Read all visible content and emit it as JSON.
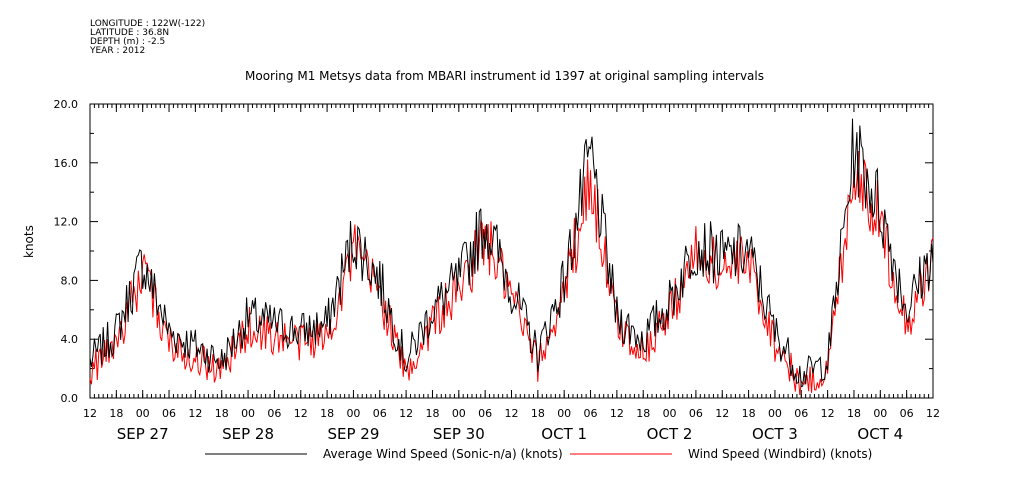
{
  "meta": {
    "longitude": "LONGITUDE : 122W(-122)",
    "latitude": "LATITUDE : 36.8N",
    "depth": "DEPTH (m) : -2.5",
    "year": "YEAR : 2012"
  },
  "chart_data": {
    "type": "line",
    "title": "Mooring M1 Metsys data from MBARI instrument id 1397 at original sampling intervals",
    "ylabel": "knots",
    "xlabel": "",
    "ylim": [
      0,
      20
    ],
    "yticks": [
      "0.0",
      "4.0",
      "8.0",
      "12.0",
      "16.0",
      "20.0"
    ],
    "x_hours_labels": [
      "12",
      "18",
      "00",
      "06",
      "12",
      "18",
      "00",
      "06",
      "12",
      "18",
      "00",
      "06",
      "12",
      "18",
      "00",
      "06",
      "12",
      "18",
      "00",
      "06",
      "12",
      "18",
      "00",
      "06",
      "12",
      "18",
      "00",
      "06",
      "12",
      "18",
      "00",
      "06",
      "12"
    ],
    "x_day_labels": [
      "SEP 27",
      "SEP 28",
      "SEP 29",
      "SEP 30",
      "OCT  1",
      "OCT  2",
      "OCT  3",
      "OCT  4"
    ],
    "time_start": "2012-09-26 12:00",
    "time_end": "2012-10-04 12:00",
    "series": [
      {
        "name": "Average Wind Speed (Sonic-n/a) (knots)",
        "color": "#000000",
        "times": [
          "2012-09-26 12:00",
          "2012-09-26 18:00",
          "2012-09-27 00:00",
          "2012-09-27 06:00",
          "2012-09-27 12:00",
          "2012-09-27 18:00",
          "2012-09-28 00:00",
          "2012-09-28 06:00",
          "2012-09-28 12:00",
          "2012-09-28 18:00",
          "2012-09-29 00:00",
          "2012-09-29 06:00",
          "2012-09-29 12:00",
          "2012-09-29 18:00",
          "2012-09-30 00:00",
          "2012-09-30 06:00",
          "2012-09-30 12:00",
          "2012-09-30 18:00",
          "2012-10-01 00:00",
          "2012-10-01 06:00",
          "2012-10-01 12:00",
          "2012-10-01 18:00",
          "2012-10-02 00:00",
          "2012-10-02 06:00",
          "2012-10-02 12:00",
          "2012-10-02 18:00",
          "2012-10-03 00:00",
          "2012-10-03 06:00",
          "2012-10-03 12:00",
          "2012-10-03 18:00",
          "2012-10-04 00:00",
          "2012-10-04 06:00",
          "2012-10-04 12:00"
        ],
        "values": [
          2.5,
          4.5,
          9.3,
          4.5,
          3.5,
          2.5,
          5.5,
          5.0,
          4.5,
          5.0,
          11.0,
          8.0,
          2.5,
          6.0,
          8.0,
          12.0,
          7.5,
          3.0,
          8.0,
          16.5,
          5.5,
          4.0,
          6.5,
          10.5,
          9.5,
          10.0,
          4.5,
          1.5,
          2.5,
          17.0,
          13.0,
          6.0,
          10.0
        ],
        "max": 19.0
      },
      {
        "name": "Wind Speed (Windbird) (knots)",
        "color": "#ff0000",
        "times": [
          "2012-09-26 12:00",
          "2012-09-26 18:00",
          "2012-09-27 00:00",
          "2012-09-27 06:00",
          "2012-09-27 12:00",
          "2012-09-27 18:00",
          "2012-09-28 00:00",
          "2012-09-28 06:00",
          "2012-09-28 12:00",
          "2012-09-28 18:00",
          "2012-09-29 00:00",
          "2012-09-29 06:00",
          "2012-09-29 12:00",
          "2012-09-29 18:00",
          "2012-09-30 00:00",
          "2012-09-30 06:00",
          "2012-09-30 12:00",
          "2012-09-30 18:00",
          "2012-10-01 00:00",
          "2012-10-01 06:00",
          "2012-10-01 12:00",
          "2012-10-01 18:00",
          "2012-10-02 00:00",
          "2012-10-02 06:00",
          "2012-10-02 12:00",
          "2012-10-02 18:00",
          "2012-10-03 00:00",
          "2012-10-03 06:00",
          "2012-10-03 12:00",
          "2012-10-03 18:00",
          "2012-10-04 00:00",
          "2012-10-04 06:00",
          "2012-10-04 12:00"
        ],
        "values": [
          1.8,
          3.8,
          8.5,
          3.8,
          2.8,
          1.8,
          4.8,
          4.2,
          3.8,
          4.2,
          10.0,
          7.2,
          1.5,
          5.2,
          7.2,
          11.0,
          6.8,
          2.2,
          7.2,
          15.0,
          5.0,
          3.2,
          5.8,
          9.8,
          8.8,
          9.2,
          3.8,
          0.8,
          1.8,
          16.0,
          12.0,
          5.0,
          9.5
        ]
      }
    ],
    "grid": false,
    "legend_position": "bottom"
  }
}
